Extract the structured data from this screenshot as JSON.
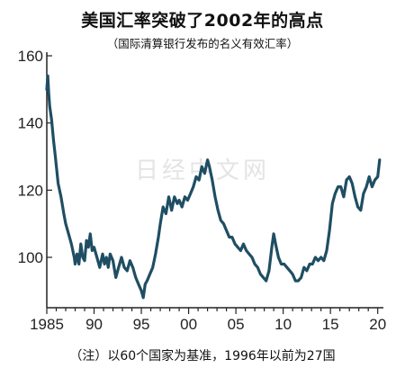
{
  "title": "美国汇率突破了2002年的高点",
  "subtitle": "（国际清算银行发布的名义有效汇率）",
  "footnote": "（注）以60个国家为基准，1996年以前为27国",
  "watermark": "日经中文网",
  "colors": {
    "line": "#1f4e63",
    "axis": "#222222"
  },
  "chart_data": {
    "type": "line",
    "title": "美国汇率突破了2002年的高点",
    "subtitle": "（国际清算银行发布的名义有效汇率）",
    "xlabel": "",
    "ylabel": "",
    "xlim": [
      1985,
      2020.6
    ],
    "ylim": [
      85,
      160
    ],
    "xticks": [
      1985,
      1990,
      1995,
      2000,
      2005,
      2010,
      2015,
      2020
    ],
    "xtick_labels": [
      "1985",
      "90",
      "95",
      "00",
      "05",
      "10",
      "15",
      "20"
    ],
    "yticks": [
      100,
      120,
      140,
      160
    ],
    "ytick_labels": [
      "100",
      "120",
      "140",
      "160"
    ],
    "grid": false,
    "series": [
      {
        "name": "",
        "x": [
          1985.0,
          1985.1,
          1985.2,
          1985.3,
          1985.5,
          1985.7,
          1985.9,
          1986.2,
          1986.5,
          1986.8,
          1987.0,
          1987.3,
          1987.6,
          1987.9,
          1988.0,
          1988.2,
          1988.4,
          1988.6,
          1988.8,
          1989.0,
          1989.2,
          1989.4,
          1989.6,
          1989.8,
          1990.0,
          1990.3,
          1990.6,
          1990.9,
          1991.1,
          1991.3,
          1991.5,
          1991.7,
          1992.0,
          1992.3,
          1992.6,
          1992.9,
          1993.2,
          1993.5,
          1993.8,
          1994.1,
          1994.4,
          1994.7,
          1995.0,
          1995.2,
          1995.4,
          1995.6,
          1995.9,
          1996.2,
          1996.5,
          1996.8,
          1997.0,
          1997.3,
          1997.6,
          1997.9,
          1998.2,
          1998.5,
          1998.8,
          1999.0,
          1999.3,
          1999.6,
          1999.9,
          2000.2,
          2000.5,
          2000.8,
          2001.1,
          2001.4,
          2001.7,
          2002.0,
          2002.2,
          2002.5,
          2002.8,
          2003.1,
          2003.4,
          2003.7,
          2004.0,
          2004.3,
          2004.6,
          2004.9,
          2005.2,
          2005.5,
          2005.8,
          2006.1,
          2006.4,
          2006.7,
          2007.0,
          2007.3,
          2007.6,
          2007.9,
          2008.2,
          2008.5,
          2008.8,
          2009.0,
          2009.2,
          2009.5,
          2009.8,
          2010.1,
          2010.4,
          2010.7,
          2011.0,
          2011.3,
          2011.6,
          2011.9,
          2012.2,
          2012.5,
          2012.8,
          2013.1,
          2013.4,
          2013.7,
          2014.0,
          2014.3,
          2014.6,
          2014.9,
          2015.2,
          2015.5,
          2015.8,
          2016.1,
          2016.4,
          2016.7,
          2017.0,
          2017.3,
          2017.6,
          2017.9,
          2018.2,
          2018.5,
          2018.8,
          2019.1,
          2019.4,
          2019.7,
          2020.0,
          2020.2
        ],
        "values": [
          150,
          154,
          149,
          145,
          141,
          135,
          130,
          122,
          118,
          113,
          110,
          107,
          104,
          100,
          98,
          101,
          98,
          104,
          100,
          99,
          105,
          103,
          107,
          102,
          103,
          100,
          97,
          101,
          98,
          100,
          97,
          101,
          99,
          94,
          97,
          100,
          97,
          96,
          99,
          97,
          94,
          92,
          90,
          88,
          92,
          93,
          95,
          97,
          101,
          106,
          110,
          115,
          113,
          118,
          114,
          118,
          116,
          117,
          115,
          118,
          117,
          119,
          121,
          124,
          123,
          127,
          125,
          129,
          127,
          123,
          118,
          114,
          111,
          110,
          108,
          106,
          106,
          104,
          103,
          102,
          104,
          102,
          101,
          100,
          98,
          97,
          95,
          94,
          93,
          96,
          103,
          107,
          104,
          100,
          98,
          98,
          97,
          96,
          95,
          93,
          93,
          94,
          97,
          96,
          98,
          98,
          100,
          99,
          100,
          99,
          102,
          108,
          116,
          119,
          121,
          121,
          118,
          123,
          124,
          122,
          118,
          115,
          114,
          119,
          121,
          124,
          121,
          123,
          124,
          129
        ]
      }
    ]
  }
}
